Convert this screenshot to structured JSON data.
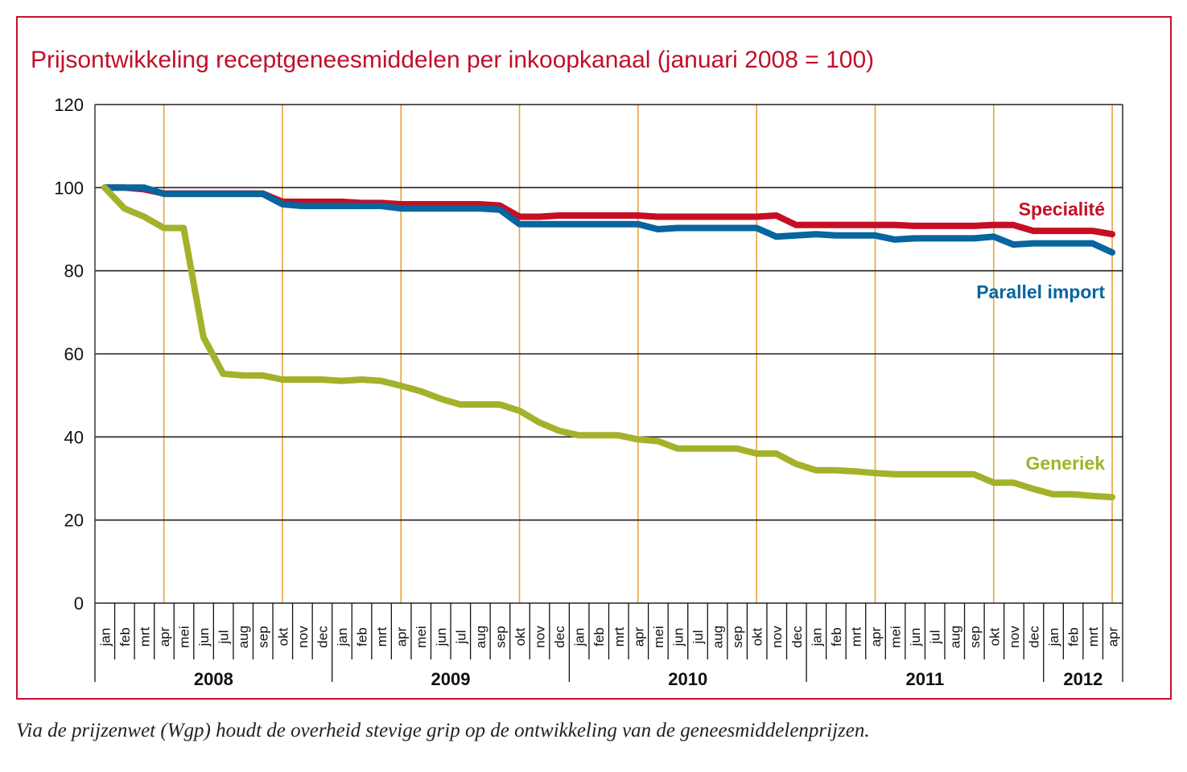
{
  "title": "Prijsontwikkeling receptgeneesmiddelen per inkoopkanaal (januari 2008 = 100)",
  "caption": "Via de prijzenwet (Wgp) houdt de overheid stevige grip op de ontwikkeling van de geneesmiddelenprijzen.",
  "colors": {
    "frame": "#c8102e",
    "title": "#c0102a",
    "specialite": "#c50f25",
    "parallel": "#07659f",
    "generiek": "#a3b22a",
    "quarter_line": "#e8a33a",
    "grid": "#222222"
  },
  "chart_data": {
    "type": "line",
    "title": "Prijsontwikkeling receptgeneesmiddelen per inkoopkanaal (januari 2008 = 100)",
    "xlabel": "",
    "ylabel": "",
    "ylim": [
      0,
      120
    ],
    "yticks": [
      0,
      20,
      40,
      60,
      80,
      100,
      120
    ],
    "grid": "horizontal at y ticks; vertical orange lines at apr and okt",
    "legend": "inline labels at right end of lines",
    "months": [
      "jan",
      "feb",
      "mrt",
      "apr",
      "mei",
      "jun",
      "jul",
      "aug",
      "sep",
      "okt",
      "nov",
      "dec",
      "jan",
      "feb",
      "mrt",
      "apr",
      "mei",
      "jun",
      "jul",
      "aug",
      "sep",
      "okt",
      "nov",
      "dec",
      "jan",
      "feb",
      "mrt",
      "apr",
      "mei",
      "jun",
      "jul",
      "aug",
      "sep",
      "okt",
      "nov",
      "dec",
      "jan",
      "feb",
      "mrt",
      "apr",
      "mei",
      "jun",
      "jul",
      "aug",
      "sep",
      "okt",
      "nov",
      "dec",
      "jan",
      "feb",
      "mrt",
      "apr"
    ],
    "years": [
      {
        "label": "2008",
        "start": 0,
        "count": 12
      },
      {
        "label": "2009",
        "start": 12,
        "count": 12
      },
      {
        "label": "2010",
        "start": 24,
        "count": 12
      },
      {
        "label": "2011",
        "start": 36,
        "count": 12
      },
      {
        "label": "2012",
        "start": 48,
        "count": 4
      }
    ],
    "quarter_marker_months": [
      "apr",
      "okt"
    ],
    "series": [
      {
        "name": "Specialité",
        "color_key": "specialite",
        "values": [
          100,
          100,
          99.6,
          98.6,
          98.6,
          98.6,
          98.6,
          98.6,
          98.6,
          96.6,
          96.6,
          96.6,
          96.6,
          96.3,
          96.3,
          96,
          96,
          96,
          96,
          96,
          95.7,
          93,
          93,
          93.3,
          93.3,
          93.3,
          93.3,
          93.3,
          93,
          93,
          93,
          93,
          93,
          93,
          93.3,
          91,
          91,
          91,
          91,
          91,
          91,
          90.8,
          90.8,
          90.8,
          90.8,
          91,
          91,
          89.6,
          89.6,
          89.6,
          89.6,
          88.8
        ]
      },
      {
        "name": "Parallel import",
        "color_key": "parallel",
        "values": [
          100,
          100,
          100,
          98.5,
          98.5,
          98.5,
          98.5,
          98.5,
          98.5,
          96,
          95.6,
          95.6,
          95.6,
          95.6,
          95.6,
          95,
          95,
          95,
          95,
          95,
          94.7,
          91.2,
          91.2,
          91.2,
          91.2,
          91.2,
          91.2,
          91.2,
          90,
          90.3,
          90.3,
          90.3,
          90.3,
          90.3,
          88.2,
          88.5,
          88.8,
          88.5,
          88.5,
          88.5,
          87.5,
          87.8,
          87.8,
          87.8,
          87.8,
          88.2,
          86.3,
          86.6,
          86.6,
          86.6,
          86.6,
          84.4
        ]
      },
      {
        "name": "Generiek",
        "color_key": "generiek",
        "values": [
          100,
          95,
          93,
          90.3,
          90.3,
          64,
          55.2,
          54.8,
          54.8,
          53.8,
          53.8,
          53.8,
          53.5,
          53.8,
          53.5,
          52.3,
          51,
          49.2,
          47.8,
          47.8,
          47.8,
          46.3,
          43.5,
          41.5,
          40.4,
          40.4,
          40.4,
          39.4,
          39,
          37.2,
          37.2,
          37.2,
          37.2,
          36,
          36,
          33.5,
          32,
          32,
          31.7,
          31.3,
          31,
          31,
          31,
          31,
          31,
          29,
          29,
          27.5,
          26.2,
          26.2,
          25.8,
          25.5
        ]
      }
    ]
  }
}
